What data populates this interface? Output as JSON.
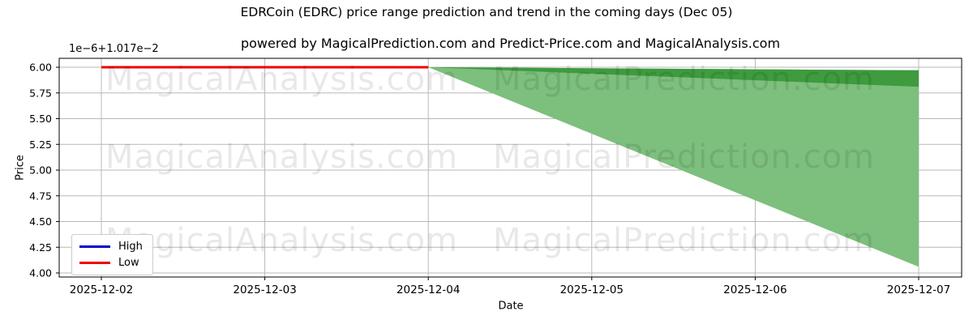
{
  "figure": {
    "watermarks": {
      "left": "MagicalAnalysis.com",
      "right": "MagicalPrediction.com"
    }
  },
  "chart_data": {
    "type": "line",
    "title": "EDRCoin (EDRC) price range prediction and trend in the coming days (Dec 05)",
    "subtitle": "powered by MagicalPrediction.com and Predict-Price.com and MagicalAnalysis.com",
    "xlabel": "Date",
    "ylabel": "Price",
    "offset_text": "1e−6+1.017e−2",
    "x_ticks": [
      "2025-12-02",
      "2025-12-03",
      "2025-12-04",
      "2025-12-05",
      "2025-12-06",
      "2025-12-07"
    ],
    "y_ticks": [
      "4.00",
      "4.25",
      "4.50",
      "4.75",
      "5.00",
      "5.25",
      "5.50",
      "5.75",
      "6.00"
    ],
    "ylim": [
      3.955,
      6.085
    ],
    "grid": true,
    "series": [
      {
        "name": "High",
        "color": "#0000cc",
        "x": [
          "2025-12-02",
          "2025-12-03",
          "2025-12-04"
        ],
        "values": [
          6.0,
          6.0,
          6.0
        ]
      },
      {
        "name": "Low",
        "color": "#ee0000",
        "x": [
          "2025-12-02",
          "2025-12-03",
          "2025-12-04"
        ],
        "values": [
          6.0,
          6.0,
          6.0
        ]
      }
    ],
    "forecast_bands": [
      {
        "name": "low-to-high-range",
        "color": "#7dbf7d",
        "x": [
          "2025-12-04",
          "2025-12-07"
        ],
        "upper": [
          6.0,
          5.97
        ],
        "lower": [
          6.0,
          4.06
        ]
      },
      {
        "name": "high-trend-band",
        "color": "#3e9b3e",
        "x": [
          "2025-12-04",
          "2025-12-07"
        ],
        "upper": [
          6.0,
          5.97
        ],
        "lower": [
          6.0,
          5.81
        ]
      }
    ],
    "legend": {
      "position": "lower left",
      "entries": [
        {
          "label": "High",
          "color": "#0000cc"
        },
        {
          "label": "Low",
          "color": "#ee0000"
        }
      ]
    },
    "colors": {
      "grid": "#b8b8b8",
      "spine": "#000000"
    }
  }
}
